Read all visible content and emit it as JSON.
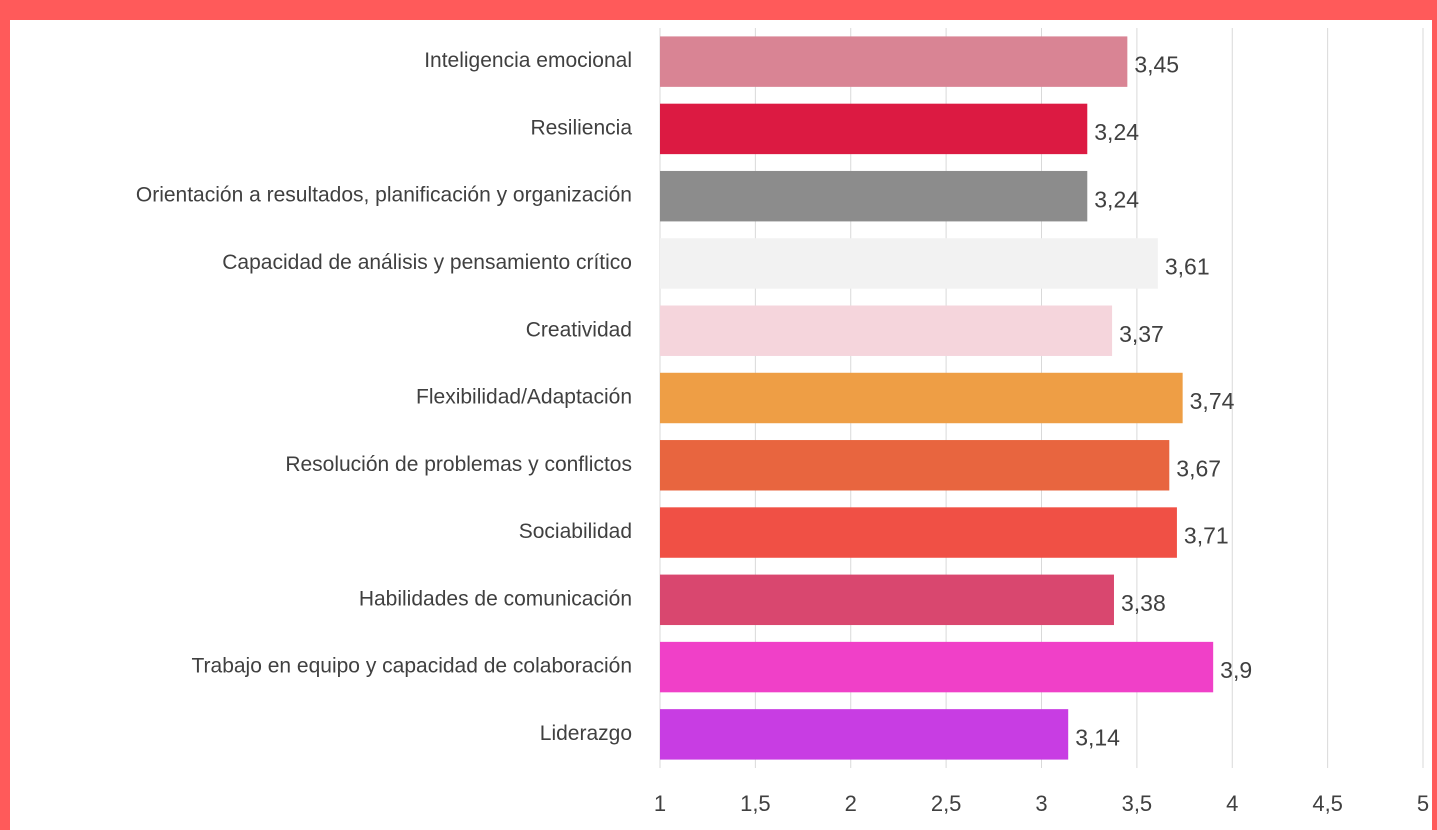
{
  "chart_data": {
    "type": "bar",
    "orientation": "horizontal",
    "categories": [
      "Inteligencia emocional",
      "Resiliencia",
      "Orientación a resultados, planificación y organización",
      "Capacidad de análisis y pensamiento crítico",
      "Creatividad",
      "Flexibilidad/Adaptación",
      "Resolución de problemas y conflictos",
      "Sociabilidad",
      "Habilidades de comunicación",
      "Trabajo en equipo y capacidad de colaboración",
      "Liderazgo"
    ],
    "values": [
      3.45,
      3.24,
      3.24,
      3.61,
      3.37,
      3.74,
      3.67,
      3.71,
      3.38,
      3.9,
      3.14
    ],
    "value_labels": [
      "3,45",
      "3,24",
      "3,24",
      "3,61",
      "3,37",
      "3,74",
      "3,67",
      "3,71",
      "3,38",
      "3,9",
      "3,14"
    ],
    "colors": [
      "#d98494",
      "#dc1a42",
      "#8c8c8c",
      "#f2f2f2",
      "#f5d5dc",
      "#ee9e45",
      "#e8653f",
      "#f05045",
      "#d9476f",
      "#f040c8",
      "#c83de3"
    ],
    "xlim": [
      1,
      5
    ],
    "xticks": [
      1,
      {
        "value": 1.5,
        "label": "1,5"
      },
      2,
      {
        "value": 2.5,
        "label": "2,5"
      },
      3,
      {
        "value": 3.5,
        "label": "3,5"
      },
      4,
      {
        "value": 4.5,
        "label": "4,5"
      },
      5
    ],
    "grid": true
  }
}
